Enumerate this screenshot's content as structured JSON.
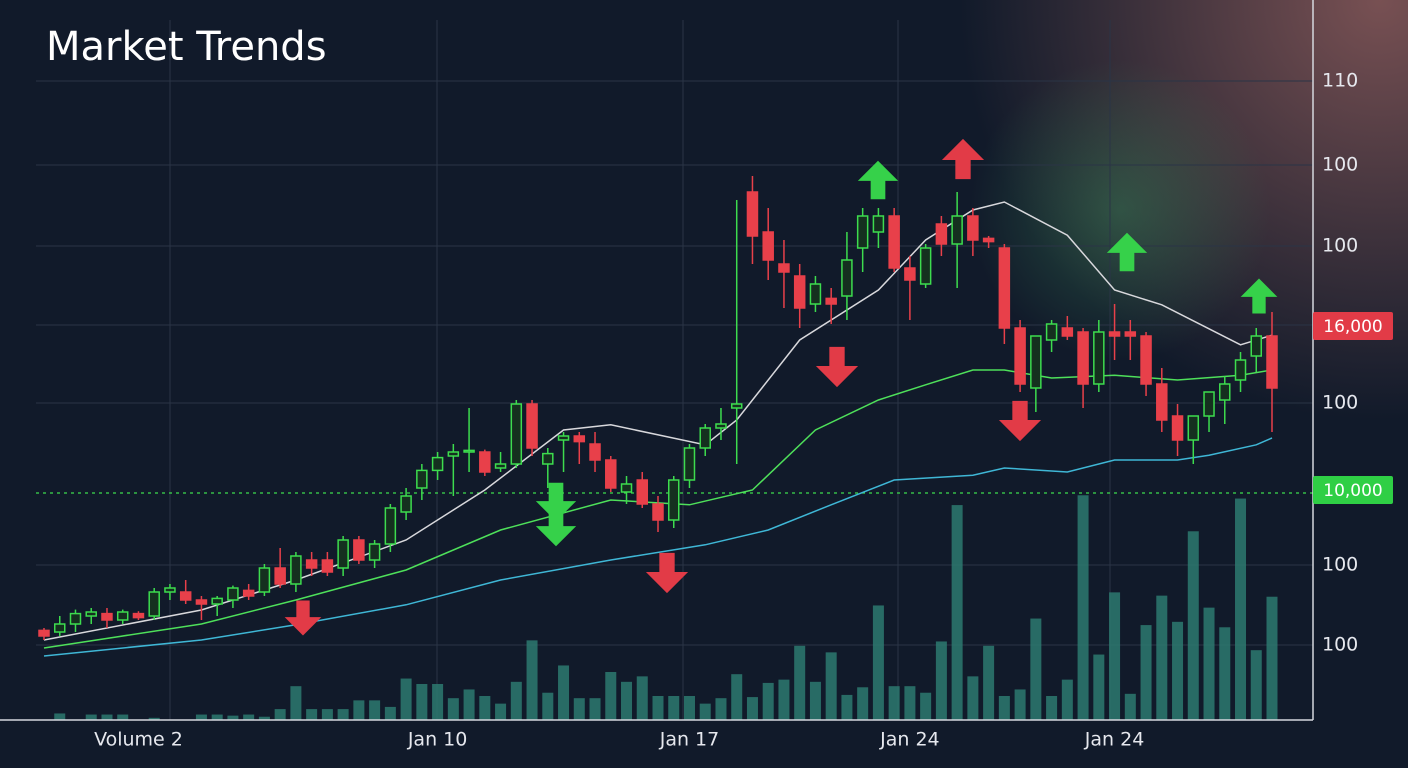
{
  "chart_data": {
    "type": "candlestick",
    "title": "Market Trends",
    "categories": [
      null,
      null,
      null,
      null,
      null,
      null,
      "Volume 2",
      null,
      null,
      null,
      null,
      null,
      null,
      null,
      null,
      null,
      null,
      null,
      null,
      null,
      null,
      null,
      null,
      null,
      null,
      "Jan 10",
      null,
      null,
      null,
      null,
      null,
      null,
      null,
      null,
      null,
      null,
      null,
      null,
      null,
      null,
      null,
      "Jan 17",
      null,
      null,
      null,
      null,
      null,
      null,
      null,
      null,
      null,
      null,
      null,
      null,
      null,
      "Jan 24",
      null,
      null,
      null,
      null,
      null,
      null,
      null,
      null,
      null,
      null,
      null,
      null,
      "Jan 24",
      null,
      null,
      null,
      null,
      null,
      null,
      null,
      null,
      null,
      null
    ],
    "open": [
      41.2,
      41,
      42,
      43,
      43.3,
      42.5,
      43.3,
      43,
      46,
      46,
      45,
      44.5,
      45,
      46.2,
      46,
      49,
      47,
      50,
      50,
      49,
      52.5,
      50,
      52,
      56,
      59,
      61.2,
      63,
      63.5,
      63.5,
      61.5,
      62,
      69.5,
      62,
      65,
      65.5,
      64.5,
      62.5,
      58.5,
      60,
      57,
      55,
      60,
      64,
      66.5,
      69,
      96,
      91,
      87,
      85.5,
      82,
      82.7,
      83,
      89,
      91,
      93,
      86.5,
      84.5,
      92,
      89.5,
      93,
      90.2,
      89,
      79,
      71.5,
      77.5,
      79,
      78.5,
      72,
      78.5,
      78.5,
      78,
      72,
      68,
      65,
      68,
      70,
      72.5,
      75.5,
      78
    ],
    "high": [
      41.5,
      43,
      43.8,
      44,
      44,
      43.8,
      43.6,
      46.5,
      47,
      47.5,
      45.5,
      45.5,
      46.8,
      47,
      49.5,
      51.5,
      51,
      51,
      51,
      53,
      53,
      52.5,
      57,
      59,
      62,
      63.5,
      64.5,
      69,
      63.8,
      63.5,
      70,
      70,
      64,
      66,
      66,
      66,
      63,
      60.5,
      61,
      58,
      60.5,
      64.5,
      67,
      69,
      95,
      98,
      94,
      90,
      87,
      85.5,
      84,
      91,
      94,
      94,
      94,
      88,
      89.5,
      93,
      96,
      94,
      90.5,
      89.5,
      80,
      78,
      80,
      80.5,
      79,
      80,
      82,
      80,
      78.5,
      74,
      69.5,
      68,
      71,
      73,
      76,
      79,
      81
    ],
    "low": [
      40,
      40.5,
      41,
      42,
      41.5,
      42,
      42.5,
      42.5,
      45,
      44.5,
      42.5,
      43,
      44,
      45,
      45.5,
      46.5,
      46,
      48,
      48,
      48,
      49.5,
      49,
      51,
      55,
      57.5,
      60,
      58,
      61,
      60.5,
      61,
      61.5,
      63,
      59,
      61,
      62,
      61,
      58.5,
      57,
      56.5,
      53.5,
      54,
      59,
      63,
      65,
      62,
      87,
      85,
      81.5,
      79,
      81,
      79.5,
      80,
      86,
      89,
      86,
      80,
      84,
      88,
      84,
      88,
      89,
      77,
      71,
      68.5,
      76,
      77.5,
      69,
      71,
      75,
      75,
      70.5,
      66,
      63,
      62,
      66,
      67,
      71,
      73.5,
      66
    ],
    "close": [
      40.5,
      42,
      43.3,
      43.5,
      42.5,
      43.5,
      42.8,
      46,
      46.5,
      45,
      44.5,
      45.2,
      46.5,
      45.5,
      49,
      47,
      50.5,
      49,
      48.5,
      52.5,
      50,
      52,
      56.5,
      58,
      61.2,
      62.8,
      63.5,
      63.7,
      61,
      62,
      69.5,
      64,
      63.3,
      65.5,
      64.8,
      62.5,
      59,
      59.5,
      57,
      55,
      60,
      64,
      66.5,
      67,
      69.5,
      90.5,
      87.5,
      86,
      81.5,
      84.5,
      82,
      87.5,
      93,
      93,
      86.5,
      85,
      89,
      89.5,
      93,
      90,
      89.8,
      79,
      72,
      78,
      79.5,
      78,
      72,
      78.5,
      78,
      78,
      72,
      67.5,
      65,
      68,
      71,
      72,
      75,
      78,
      71.5
    ],
    "up_color": "#3ddc4e",
    "down_color": "#e8404a",
    "ylim": [
      30,
      120
    ],
    "volume": [
      0,
      3,
      0,
      2.5,
      2.5,
      2.5,
      0,
      1,
      0,
      0,
      2.5,
      2.5,
      2,
      2.5,
      1.5,
      5,
      15.5,
      5,
      5,
      5,
      9,
      9,
      6,
      19,
      16.5,
      16.5,
      10,
      14,
      11,
      7.5,
      17.5,
      36.5,
      12.5,
      25,
      10,
      10,
      22,
      17.5,
      20,
      11,
      11,
      11,
      7.5,
      10,
      21,
      10.5,
      17,
      18.5,
      34,
      17.5,
      31,
      11.5,
      15,
      52.5,
      15.5,
      15.5,
      12.5,
      36,
      98.5,
      20,
      34,
      11,
      14,
      46.5,
      11,
      18.5,
      103,
      30,
      58.5,
      12,
      43.5,
      57,
      45,
      86.5,
      51.5,
      42.5,
      101.5,
      32,
      56.5
    ],
    "y2lim": [
      0,
      110
    ],
    "volume_color": "#2d7a70",
    "lines": [
      {
        "color": "#d8d8dc",
        "x": [
          0,
          10,
          16,
          23,
          28,
          33,
          36,
          42,
          44,
          48,
          53,
          56,
          59,
          61,
          65,
          68,
          71,
          76,
          78
        ],
        "values": [
          40,
          43.75,
          47.5,
          52.5,
          58.75,
          66.25,
          66.9,
          64.4,
          67.5,
          77.5,
          83.75,
          90,
          93.75,
          94.75,
          90.6,
          83.75,
          81.9,
          76.9,
          78.1
        ]
      },
      {
        "color": "#4ee05a",
        "x": [
          0,
          10,
          16,
          23,
          29,
          36,
          41,
          45,
          49,
          53,
          56,
          59,
          61,
          64,
          68,
          72,
          76,
          78
        ],
        "values": [
          39,
          42,
          45,
          48.75,
          53.75,
          57.5,
          56.9,
          58.75,
          66.25,
          70,
          71.9,
          73.75,
          73.75,
          72.75,
          73.1,
          72.5,
          73.1,
          73.75
        ]
      },
      {
        "color": "#3fb7d6",
        "x": [
          0,
          10,
          16,
          23,
          29,
          36,
          42,
          46,
          50,
          54,
          59,
          61,
          65,
          68,
          72,
          74,
          77,
          78
        ],
        "values": [
          38,
          40,
          41.9,
          44.4,
          47.5,
          50,
          51.9,
          53.75,
          56.9,
          60,
          60.6,
          61.5,
          61,
          62.5,
          62.5,
          63.1,
          64.4,
          65.25
        ]
      }
    ],
    "y_axis_labels": [
      "110",
      "100",
      "100",
      "100",
      "100",
      "100"
    ],
    "price_tags": [
      {
        "label": "16,000",
        "color": "#e23b47"
      },
      {
        "label": "10,000",
        "color": "#2fcf45"
      }
    ]
  }
}
